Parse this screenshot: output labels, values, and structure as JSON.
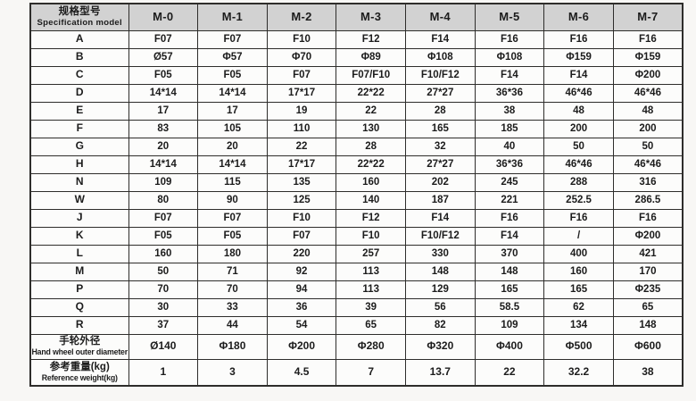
{
  "table": {
    "corner": {
      "zh": "规格型号",
      "en": "Specification model"
    },
    "models": [
      "M-0",
      "M-1",
      "M-2",
      "M-3",
      "M-4",
      "M-5",
      "M-6",
      "M-7"
    ],
    "rows": [
      {
        "label": "A",
        "values": [
          "F07",
          "F07",
          "F10",
          "F12",
          "F14",
          "F16",
          "F16",
          "F16"
        ]
      },
      {
        "label": "B",
        "values": [
          "Ø57",
          "Φ57",
          "Φ70",
          "Φ89",
          "Φ108",
          "Φ108",
          "Φ159",
          "Φ159"
        ]
      },
      {
        "label": "C",
        "values": [
          "F05",
          "F05",
          "F07",
          "F07/F10",
          "F10/F12",
          "F14",
          "F14",
          "Φ200"
        ]
      },
      {
        "label": "D",
        "values": [
          "14*14",
          "14*14",
          "17*17",
          "22*22",
          "27*27",
          "36*36",
          "46*46",
          "46*46"
        ]
      },
      {
        "label": "E",
        "values": [
          "17",
          "17",
          "19",
          "22",
          "28",
          "38",
          "48",
          "48"
        ]
      },
      {
        "label": "F",
        "values": [
          "83",
          "105",
          "110",
          "130",
          "165",
          "185",
          "200",
          "200"
        ]
      },
      {
        "label": "G",
        "values": [
          "20",
          "20",
          "22",
          "28",
          "32",
          "40",
          "50",
          "50"
        ]
      },
      {
        "label": "H",
        "values": [
          "14*14",
          "14*14",
          "17*17",
          "22*22",
          "27*27",
          "36*36",
          "46*46",
          "46*46"
        ]
      },
      {
        "label": "N",
        "values": [
          "109",
          "115",
          "135",
          "160",
          "202",
          "245",
          "288",
          "316"
        ]
      },
      {
        "label": "W",
        "values": [
          "80",
          "90",
          "125",
          "140",
          "187",
          "221",
          "252.5",
          "286.5"
        ]
      },
      {
        "label": "J",
        "values": [
          "F07",
          "F07",
          "F10",
          "F12",
          "F14",
          "F16",
          "F16",
          "F16"
        ]
      },
      {
        "label": "K",
        "values": [
          "F05",
          "F05",
          "F07",
          "F10",
          "F10/F12",
          "F14",
          "/",
          "Φ200"
        ]
      },
      {
        "label": "L",
        "values": [
          "160",
          "180",
          "220",
          "257",
          "330",
          "370",
          "400",
          "421"
        ]
      },
      {
        "label": "M",
        "values": [
          "50",
          "71",
          "92",
          "113",
          "148",
          "148",
          "160",
          "170"
        ]
      },
      {
        "label": "P",
        "values": [
          "70",
          "70",
          "94",
          "113",
          "129",
          "165",
          "165",
          "Φ235"
        ]
      },
      {
        "label": "Q",
        "values": [
          "30",
          "33",
          "36",
          "39",
          "56",
          "58.5",
          "62",
          "65"
        ]
      },
      {
        "label": "R",
        "values": [
          "37",
          "44",
          "54",
          "65",
          "82",
          "109",
          "134",
          "148"
        ]
      }
    ],
    "footer_rows": [
      {
        "label_zh": "手轮外径",
        "label_en": "Hand wheel outer diameter",
        "values": [
          "Ø140",
          "Φ180",
          "Φ200",
          "Φ280",
          "Φ320",
          "Φ400",
          "Φ500",
          "Φ600"
        ]
      },
      {
        "label_zh": "参考重量(kg)",
        "label_en": "Reference weight(kg)",
        "values": [
          "1",
          "3",
          "4.5",
          "7",
          "13.7",
          "22",
          "32.2",
          "38"
        ]
      }
    ],
    "colors": {
      "header_bg": "#d2d2d2",
      "border": "#2e2d2b",
      "cell_bg": "#fcfcfb"
    }
  }
}
